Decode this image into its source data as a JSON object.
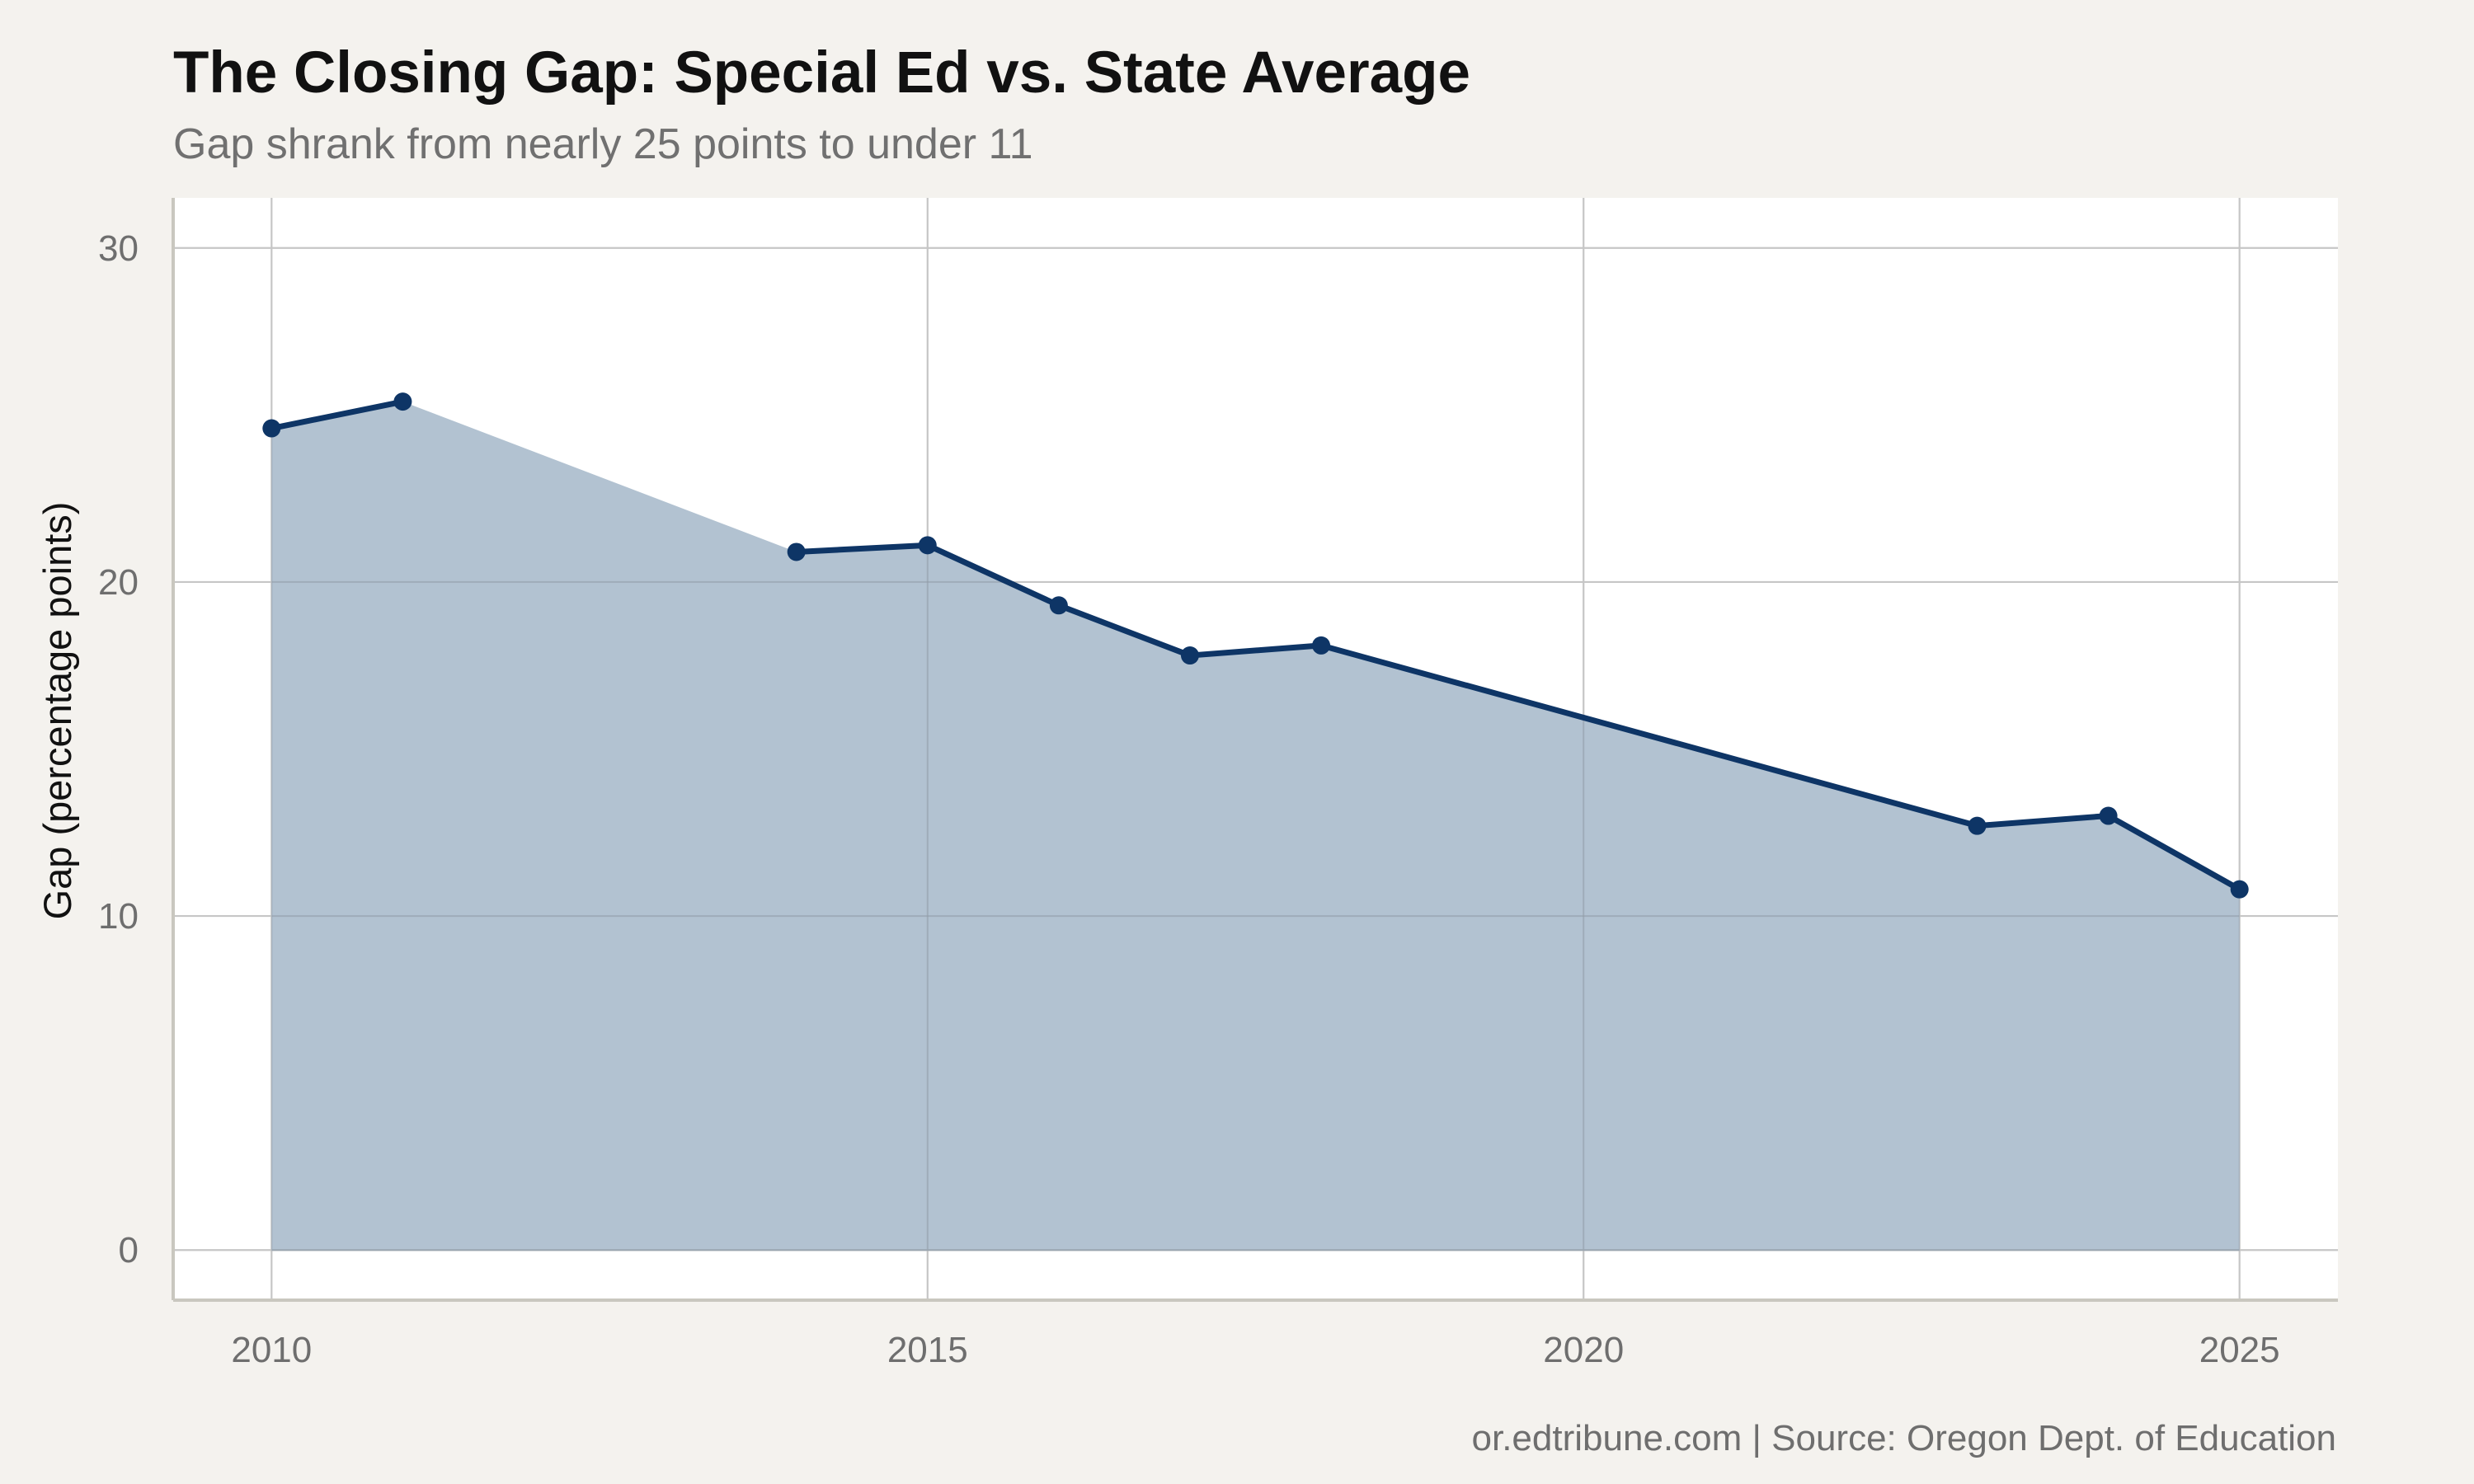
{
  "colors": {
    "background": "#f4f2ee",
    "panel": "#ffffff",
    "line": "#0e3566",
    "area": "#b2c2d1",
    "grid": "#c6c6c6",
    "axis": "#c9c7bf"
  },
  "chart_data": {
    "type": "area",
    "title": "The Closing Gap: Special Ed vs. State Average",
    "subtitle": "Gap shrank from nearly 25 points to under 11",
    "xlabel": "",
    "ylabel": "Gap (percentage points)",
    "caption": "or.edtribune.com | Source: Oregon Dept. of Education",
    "xlim": [
      2009.25,
      2025.75
    ],
    "ylim": [
      -1.5,
      31.5
    ],
    "x_ticks": [
      2010,
      2015,
      2020,
      2025
    ],
    "x_tick_labels": [
      "2010",
      "2015",
      "2020",
      "2025"
    ],
    "y_ticks": [
      0,
      10,
      20,
      30
    ],
    "y_tick_labels": [
      "0",
      "10",
      "20",
      "30"
    ],
    "grid": true,
    "legend": "none",
    "series": [
      {
        "x": [
          2010,
          2011,
          2014,
          2015,
          2016,
          2017,
          2018,
          2023,
          2024,
          2025
        ],
        "y": [
          24.6,
          25.4,
          20.9,
          21.1,
          19.3,
          17.8,
          18.1,
          12.7,
          13.0,
          10.8
        ]
      }
    ]
  }
}
